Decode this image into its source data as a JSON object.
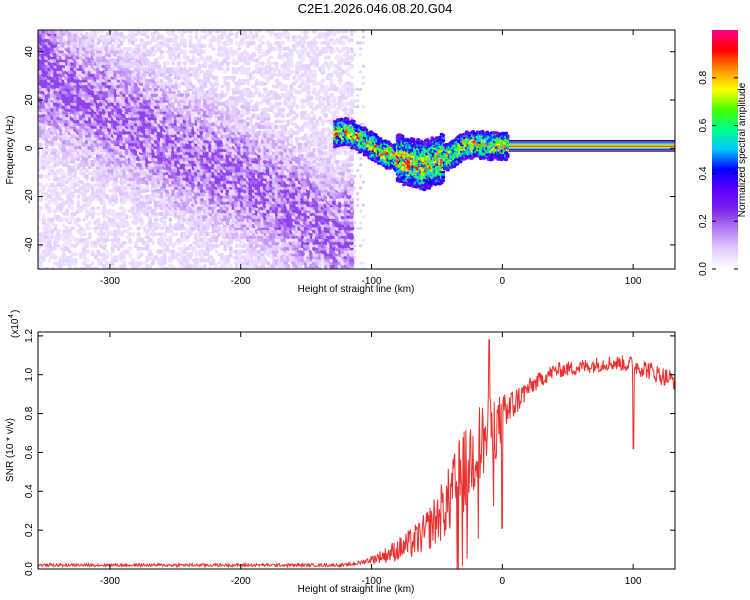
{
  "figure": {
    "title": "C2E1.2026.046.08.20.G04"
  },
  "chart_data": [
    {
      "type": "heatmap",
      "xlabel": "Height of straight line (km)",
      "ylabel": "Frequency (Hz)",
      "xlim": [
        -355,
        132
      ],
      "ylim": [
        -50,
        49
      ],
      "xticks": [
        -300,
        -200,
        -100,
        0,
        100
      ],
      "xtick_labels": [
        "-300",
        "-200",
        "-100",
        "0",
        "100"
      ],
      "yticks": [
        -40,
        -20,
        0,
        20,
        40
      ],
      "ytick_labels": [
        "-40",
        "-20",
        "0",
        "20",
        "40"
      ],
      "colorbar": {
        "label": "Normalized spectral amplitude",
        "range": [
          0,
          1
        ],
        "ticks": [
          0.0,
          0.2,
          0.4,
          0.6,
          0.8
        ],
        "tick_labels": [
          "0.0",
          "0.2",
          "0.4",
          "0.6",
          "0.8"
        ],
        "colormap": [
          "#ffffff",
          "#e3ccff",
          "#b57cf5",
          "#7a22e8",
          "#5a00ff",
          "#0000ff",
          "#00c8ff",
          "#00ff90",
          "#44ff00",
          "#ffff00",
          "#ff9000",
          "#ff0000",
          "#ff0088"
        ]
      },
      "features": {
        "noise_region_x": [
          -355,
          -115
        ],
        "noise_band_center": [
          [
            -355,
            30
          ],
          [
            -300,
            15
          ],
          [
            -240,
            -2
          ],
          [
            -180,
            -18
          ],
          [
            -130,
            -35
          ]
        ],
        "signal_ridge": [
          [
            -128,
            6
          ],
          [
            -118,
            7
          ],
          [
            -105,
            3
          ],
          [
            -90,
            -2
          ],
          [
            -75,
            -5
          ],
          [
            -60,
            -7
          ],
          [
            -50,
            -5
          ],
          [
            -40,
            -3
          ],
          [
            -30,
            1
          ],
          [
            -20,
            2
          ],
          [
            -10,
            1
          ],
          [
            0,
            1
          ],
          [
            10,
            1
          ],
          [
            132,
            1
          ]
        ],
        "steady_line_x": [
          5,
          132
        ],
        "steady_line_y": 1
      }
    },
    {
      "type": "line",
      "xlabel": "Height of straight line (km)",
      "ylabel": "SNR (10 * v/v)",
      "y_multiplier_label": "(x10",
      "y_multiplier_exponent": "4",
      "xlim": [
        -355,
        132
      ],
      "ylim": [
        0,
        1.22
      ],
      "xticks": [
        -300,
        -200,
        -100,
        0,
        100
      ],
      "xtick_labels": [
        "-300",
        "-200",
        "-100",
        "0",
        "100"
      ],
      "yticks": [
        0.0,
        0.2,
        0.4,
        0.6,
        0.8,
        1.0,
        1.2
      ],
      "ytick_labels": [
        "0.0",
        "0.2",
        "0.4",
        "0.6",
        "0.8",
        "1.0",
        "1.2"
      ],
      "series_color": "#e83030",
      "envelope": {
        "x": [
          -355,
          -120,
          -110,
          -100,
          -90,
          -80,
          -70,
          -60,
          -50,
          -40,
          -30,
          -20,
          -10,
          0,
          10,
          20,
          30,
          40,
          50,
          60,
          70,
          80,
          90,
          100,
          110,
          120,
          132
        ],
        "y": [
          0.02,
          0.02,
          0.03,
          0.05,
          0.07,
          0.1,
          0.13,
          0.18,
          0.26,
          0.36,
          0.5,
          0.62,
          0.7,
          0.76,
          0.86,
          0.93,
          0.98,
          1.02,
          1.03,
          1.04,
          1.05,
          1.06,
          1.06,
          1.05,
          1.03,
          1.0,
          0.97
        ],
        "noise": [
          0.008,
          0.008,
          0.01,
          0.02,
          0.04,
          0.06,
          0.08,
          0.1,
          0.14,
          0.18,
          0.22,
          0.22,
          0.2,
          0.14,
          0.08,
          0.05,
          0.04,
          0.04,
          0.04,
          0.04,
          0.04,
          0.04,
          0.04,
          0.05,
          0.05,
          0.05,
          0.05
        ]
      },
      "annotations": [
        {
          "x": 0,
          "y": 0.21,
          "note": "dip"
        },
        {
          "x": 100,
          "y": 0.62,
          "note": "dip"
        },
        {
          "x": -10,
          "y": 1.18,
          "note": "peak"
        }
      ]
    }
  ]
}
